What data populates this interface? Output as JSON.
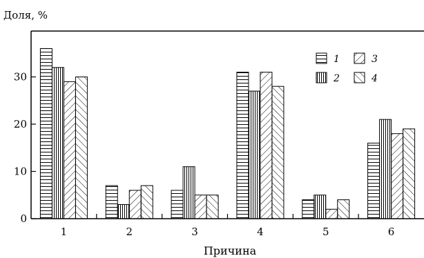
{
  "chart_data": {
    "type": "bar",
    "title": "",
    "ylabel": "Доля, %",
    "xlabel": "Причина",
    "categories": [
      "1",
      "2",
      "3",
      "4",
      "5",
      "6"
    ],
    "series": [
      {
        "name": "1",
        "values": [
          36,
          7,
          6,
          31,
          4,
          16
        ],
        "pattern": "horizontal-lines"
      },
      {
        "name": "2",
        "values": [
          32,
          3,
          11,
          27,
          5,
          21
        ],
        "pattern": "vertical-lines"
      },
      {
        "name": "3",
        "values": [
          29,
          6,
          5,
          31,
          2,
          18
        ],
        "pattern": "diagonal-down"
      },
      {
        "name": "4",
        "values": [
          30,
          7,
          5,
          28,
          4,
          19
        ],
        "pattern": "diagonal-up"
      }
    ],
    "ylim": [
      0,
      40
    ],
    "yticks": [
      "0",
      "10",
      "20",
      "30"
    ],
    "ytick_values": [
      0,
      10,
      20,
      30
    ],
    "grid": false,
    "legend_position": "top-right",
    "legend_columns": 2,
    "colors": {
      "stroke": "#000000",
      "fill": "#ffffff",
      "background": "#ffffff"
    }
  }
}
